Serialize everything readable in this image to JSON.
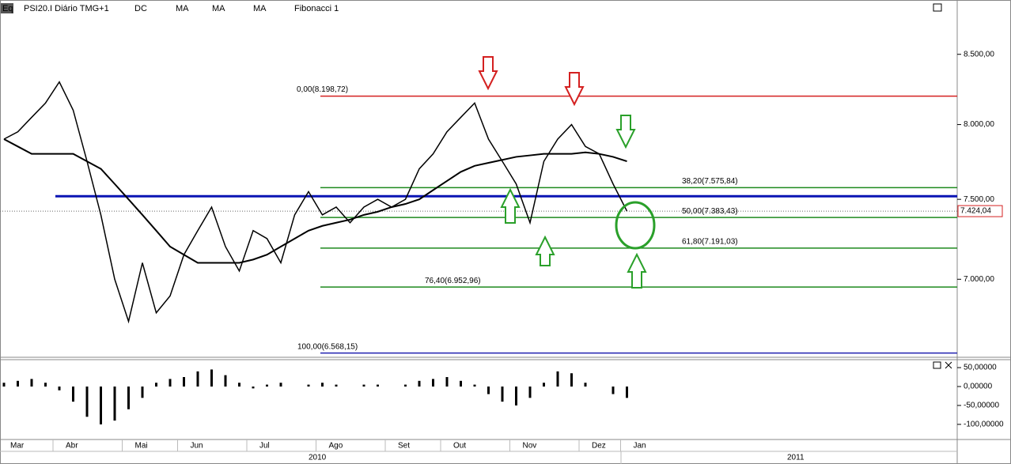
{
  "chart_data": {
    "type": "line",
    "header": [
      "Eq",
      "PSI20.I Diário TMG+1",
      "DC",
      "MA",
      "MA",
      "MA",
      "Fibonacci 1"
    ],
    "log_scale": true,
    "ylim": [
      6553,
      8908
    ],
    "yticks": [
      {
        "value": 8500,
        "label": "8.500,00"
      },
      {
        "value": 8000,
        "label": "8.000,00"
      },
      {
        "value": 7500,
        "label": "7.500,00"
      },
      {
        "value": 7000,
        "label": "7.000,00"
      }
    ],
    "categories": [
      "Mar",
      null,
      null,
      null,
      "Abr",
      null,
      null,
      null,
      null,
      "Mai",
      null,
      null,
      null,
      "Jun",
      null,
      null,
      null,
      null,
      "Jul",
      null,
      null,
      null,
      null,
      "Ago",
      null,
      null,
      null,
      null,
      "Set",
      null,
      null,
      null,
      "Out",
      null,
      null,
      null,
      null,
      "Nov",
      null,
      null,
      null,
      null,
      "Dez",
      null,
      null,
      "Jan"
    ],
    "years": [
      "2010",
      "2011"
    ],
    "series": [
      {
        "name": "PSI20.I",
        "color": "#000000",
        "values": [
          7900,
          7950,
          8050,
          8150,
          8300,
          8100,
          7750,
          7400,
          7000,
          6750,
          7100,
          6800,
          6900,
          7150,
          7300,
          7450,
          7200,
          7050,
          7300,
          7250,
          7100,
          7400,
          7550,
          7400,
          7450,
          7350,
          7450,
          7500,
          7450,
          7500,
          7700,
          7800,
          7950,
          8050,
          8150,
          7900,
          7750,
          7600,
          7350,
          7750,
          7900,
          8000,
          7850,
          7800,
          7600,
          7424.04
        ]
      },
      {
        "name": "MA",
        "color": "#000000",
        "values": [
          7900,
          7850,
          7800,
          7800,
          7800,
          7800,
          7750,
          7700,
          7600,
          7500,
          7400,
          7300,
          7200,
          7150,
          7100,
          7100,
          7100,
          7100,
          7120,
          7150,
          7200,
          7250,
          7300,
          7330,
          7350,
          7370,
          7400,
          7420,
          7450,
          7470,
          7500,
          7560,
          7620,
          7680,
          7720,
          7740,
          7760,
          7780,
          7790,
          7800,
          7800,
          7800,
          7810,
          7800,
          7780,
          7750
        ]
      }
    ],
    "last_price": {
      "value": 7424.04,
      "label": "7.424,04"
    },
    "support_line": 7520,
    "fibonacci": [
      {
        "value": 8198.72,
        "label": "0,00(8.198,72)",
        "color": "#d42020"
      },
      {
        "value": 7575.84,
        "label": "38,20(7.575,84)",
        "color": "#1e8a1e"
      },
      {
        "value": 7383.43,
        "label": "50,00(7.383,43)",
        "color": "#1e8a1e"
      },
      {
        "value": 7191.03,
        "label": "61,80(7.191,03)",
        "color": "#1e8a1e"
      },
      {
        "value": 6952.96,
        "label": "76,40(6.952,96)",
        "color": "#1e8a1e"
      },
      {
        "value": 6568.15,
        "label": "100,00(6.568,15)",
        "color": "#2020b0"
      }
    ],
    "oscillator": {
      "ylim": [
        -140,
        71
      ],
      "yticks": [
        {
          "value": 50,
          "label": "50,00000"
        },
        {
          "value": 0,
          "label": "0,00000"
        },
        {
          "value": -50,
          "label": "-50,00000"
        },
        {
          "value": -100,
          "label": "-100,00000"
        }
      ],
      "values": [
        10,
        15,
        20,
        10,
        -10,
        -40,
        -80,
        -100,
        -90,
        -60,
        -30,
        10,
        20,
        25,
        40,
        45,
        30,
        10,
        -5,
        5,
        10,
        0,
        5,
        10,
        5,
        0,
        5,
        5,
        0,
        5,
        15,
        20,
        25,
        15,
        5,
        -20,
        -40,
        -50,
        -30,
        10,
        40,
        35,
        10,
        0,
        -20,
        -30
      ]
    }
  }
}
